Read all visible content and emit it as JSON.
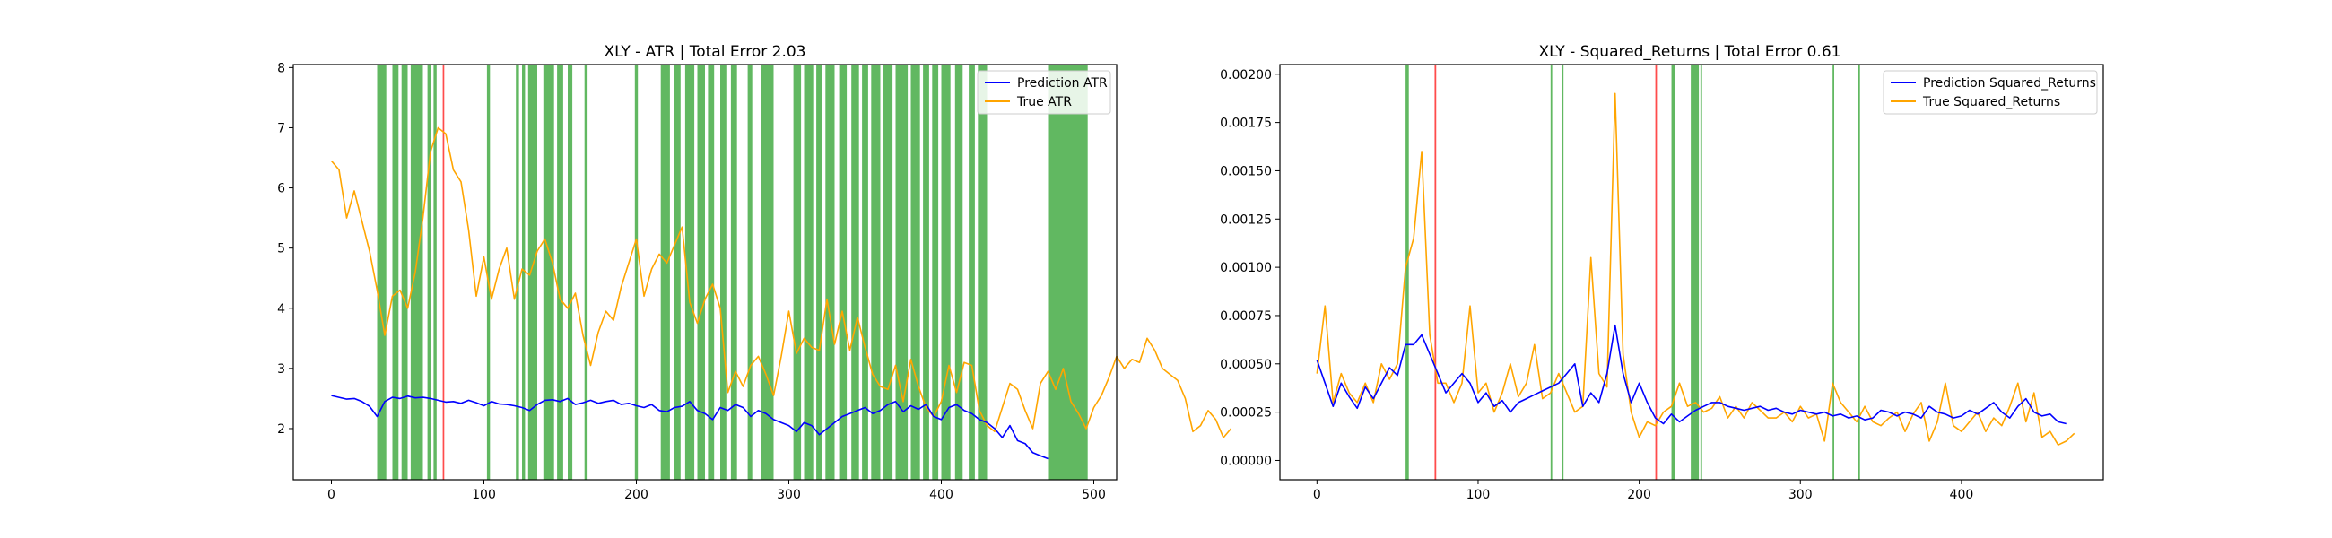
{
  "chart_data": [
    {
      "type": "line",
      "title": "XLY - ATR | Total Error 2.03",
      "xlabel": "",
      "ylabel": "",
      "xlim": [
        -25,
        515
      ],
      "ylim": [
        1.15,
        8.05
      ],
      "xticks": [
        0,
        100,
        200,
        300,
        400,
        500
      ],
      "yticks": [
        2,
        3,
        4,
        5,
        6,
        7,
        8
      ],
      "grid": false,
      "legend_position": "upper-right",
      "series": [
        {
          "name": "Prediction ATR",
          "color": "#0000ff",
          "x_start": 0,
          "x_step": 5,
          "values": [
            2.55,
            2.52,
            2.49,
            2.5,
            2.45,
            2.37,
            2.2,
            2.45,
            2.52,
            2.5,
            2.54,
            2.51,
            2.52,
            2.5,
            2.47,
            2.44,
            2.45,
            2.42,
            2.47,
            2.43,
            2.38,
            2.45,
            2.41,
            2.4,
            2.38,
            2.35,
            2.3,
            2.4,
            2.47,
            2.48,
            2.45,
            2.5,
            2.4,
            2.43,
            2.47,
            2.42,
            2.45,
            2.47,
            2.4,
            2.42,
            2.38,
            2.35,
            2.4,
            2.3,
            2.28,
            2.35,
            2.37,
            2.45,
            2.3,
            2.25,
            2.15,
            2.35,
            2.3,
            2.4,
            2.35,
            2.2,
            2.3,
            2.25,
            2.15,
            2.1,
            2.05,
            1.95,
            2.1,
            2.05,
            1.9,
            2.0,
            2.1,
            2.2,
            2.25,
            2.3,
            2.35,
            2.25,
            2.3,
            2.4,
            2.45,
            2.28,
            2.38,
            2.32,
            2.4,
            2.2,
            2.15,
            2.35,
            2.4,
            2.3,
            2.25,
            2.15,
            2.1,
            2.0,
            1.85,
            2.05,
            1.8,
            1.75,
            1.6,
            1.55,
            1.5
          ]
        },
        {
          "name": "True ATR",
          "color": "#ffa500",
          "x_start": 0,
          "x_step": 5,
          "values": [
            6.45,
            6.3,
            5.5,
            5.95,
            5.45,
            4.95,
            4.3,
            3.55,
            4.2,
            4.3,
            4.0,
            4.6,
            5.5,
            6.6,
            7.0,
            6.9,
            6.3,
            6.1,
            5.3,
            4.2,
            4.85,
            4.15,
            4.65,
            5.0,
            4.15,
            4.65,
            4.55,
            4.95,
            5.15,
            4.75,
            4.15,
            4.0,
            4.25,
            3.55,
            3.05,
            3.6,
            3.95,
            3.8,
            4.35,
            4.75,
            5.15,
            4.2,
            4.65,
            4.9,
            4.75,
            5.05,
            5.35,
            4.1,
            3.75,
            4.15,
            4.4,
            4.0,
            2.6,
            2.95,
            2.7,
            3.05,
            3.2,
            2.9,
            2.55,
            3.2,
            3.95,
            3.25,
            3.5,
            3.35,
            3.3,
            4.15,
            3.4,
            3.95,
            3.3,
            3.85,
            3.35,
            2.9,
            2.7,
            2.65,
            3.05,
            2.45,
            3.15,
            2.7,
            2.35,
            2.2,
            2.45,
            3.05,
            2.6,
            3.1,
            3.05,
            2.3,
            2.05,
            1.95,
            2.35,
            2.75,
            2.65,
            2.3,
            2.0,
            2.75,
            2.95,
            2.65,
            3.0,
            2.45,
            2.25,
            2.0,
            2.35,
            2.55,
            2.85,
            3.2,
            3.0,
            3.15,
            3.1,
            3.5,
            3.3,
            3.0,
            2.9,
            2.8,
            2.5,
            1.95,
            2.05,
            2.3,
            2.15,
            1.85,
            2.0
          ]
        }
      ],
      "bands": {
        "green": [
          [
            30,
            36
          ],
          [
            40,
            44
          ],
          [
            46,
            50
          ],
          [
            52,
            60
          ],
          [
            63,
            65
          ],
          [
            67,
            69
          ],
          [
            102,
            104
          ],
          [
            121,
            123
          ],
          [
            125,
            127
          ],
          [
            129,
            135
          ],
          [
            139,
            146
          ],
          [
            148,
            152
          ],
          [
            155,
            158
          ],
          [
            166,
            168
          ],
          [
            199,
            201
          ],
          [
            216,
            222
          ],
          [
            225,
            229
          ],
          [
            232,
            238
          ],
          [
            240,
            245
          ],
          [
            247,
            251
          ],
          [
            255,
            259
          ],
          [
            262,
            266
          ],
          [
            273,
            276
          ],
          [
            282,
            290
          ],
          [
            303,
            308
          ],
          [
            310,
            316
          ],
          [
            318,
            322
          ],
          [
            324,
            330
          ],
          [
            333,
            338
          ],
          [
            341,
            346
          ],
          [
            348,
            352
          ],
          [
            354,
            360
          ],
          [
            362,
            368
          ],
          [
            370,
            378
          ],
          [
            380,
            386
          ],
          [
            388,
            392
          ],
          [
            394,
            398
          ],
          [
            400,
            406
          ],
          [
            409,
            414
          ],
          [
            418,
            422
          ],
          [
            424,
            430
          ],
          [
            470,
            496
          ]
        ],
        "red": [
          [
            73,
            74
          ]
        ]
      }
    },
    {
      "type": "line",
      "title": "XLY - Squared_Returns | Total Error 0.61",
      "xlabel": "",
      "ylabel": "",
      "xlim": [
        -23,
        488
      ],
      "ylim": [
        -0.0001,
        0.00205
      ],
      "xticks": [
        0,
        100,
        200,
        300,
        400
      ],
      "yticks": [
        0.0,
        0.00025,
        0.0005,
        0.00075,
        0.001,
        0.00125,
        0.0015,
        0.00175,
        0.002
      ],
      "grid": false,
      "legend_position": "upper-right",
      "series": [
        {
          "name": "Prediction Squared_Returns",
          "color": "#0000ff",
          "x_start": 0,
          "x_step": 5,
          "values": [
            0.00052,
            0.0004,
            0.00028,
            0.0004,
            0.00033,
            0.00027,
            0.00038,
            0.00032,
            0.0004,
            0.00048,
            0.00044,
            0.0006,
            0.0006,
            0.00065,
            0.00055,
            0.00045,
            0.00035,
            0.0004,
            0.00045,
            0.0004,
            0.0003,
            0.00035,
            0.00028,
            0.00031,
            0.00025,
            0.0003,
            0.00032,
            0.00034,
            0.00036,
            0.00038,
            0.0004,
            0.00045,
            0.0005,
            0.00028,
            0.00035,
            0.0003,
            0.00045,
            0.0007,
            0.00045,
            0.0003,
            0.0004,
            0.0003,
            0.00022,
            0.00019,
            0.00024,
            0.0002,
            0.00023,
            0.00026,
            0.00028,
            0.0003,
            0.0003,
            0.00028,
            0.00027,
            0.00026,
            0.00027,
            0.00028,
            0.00026,
            0.00027,
            0.00025,
            0.00024,
            0.00026,
            0.00025,
            0.00024,
            0.00025,
            0.00023,
            0.00024,
            0.00022,
            0.00023,
            0.00021,
            0.00022,
            0.00026,
            0.00025,
            0.00023,
            0.00025,
            0.00024,
            0.00022,
            0.00028,
            0.00025,
            0.00024,
            0.00022,
            0.00023,
            0.00026,
            0.00024,
            0.00027,
            0.0003,
            0.00025,
            0.00022,
            0.00028,
            0.00032,
            0.00025,
            0.00023,
            0.00024,
            0.0002,
            0.00019
          ]
        },
        {
          "name": "True Squared_Returns",
          "color": "#ffa500",
          "x_start": 0,
          "x_step": 5,
          "values": [
            0.00045,
            0.0008,
            0.0003,
            0.00045,
            0.00035,
            0.0003,
            0.0004,
            0.0003,
            0.0005,
            0.00042,
            0.0005,
            0.001,
            0.00115,
            0.0016,
            0.00065,
            0.0004,
            0.0004,
            0.0003,
            0.0004,
            0.0008,
            0.00035,
            0.0004,
            0.00025,
            0.00035,
            0.0005,
            0.00033,
            0.0004,
            0.0006,
            0.00032,
            0.00035,
            0.00045,
            0.00035,
            0.00025,
            0.00028,
            0.00105,
            0.00045,
            0.00038,
            0.0019,
            0.00055,
            0.00025,
            0.00012,
            0.0002,
            0.00018,
            0.00025,
            0.00028,
            0.0004,
            0.00028,
            0.0003,
            0.00025,
            0.00027,
            0.00033,
            0.00022,
            0.00028,
            0.00022,
            0.0003,
            0.00026,
            0.00022,
            0.00022,
            0.00025,
            0.0002,
            0.00028,
            0.00022,
            0.00024,
            0.0001,
            0.0004,
            0.0003,
            0.00025,
            0.0002,
            0.00028,
            0.0002,
            0.00018,
            0.00022,
            0.00025,
            0.00015,
            0.00024,
            0.0003,
            0.0001,
            0.0002,
            0.0004,
            0.00018,
            0.00015,
            0.0002,
            0.00025,
            0.00015,
            0.00022,
            0.00018,
            0.00028,
            0.0004,
            0.0002,
            0.00035,
            0.00012,
            0.00015,
            8e-05,
            0.0001,
            0.00014
          ]
        }
      ],
      "bands": {
        "green": [
          [
            55,
            57
          ],
          [
            145,
            146
          ],
          [
            152,
            153
          ],
          [
            220,
            222
          ],
          [
            232,
            237
          ],
          [
            238,
            239
          ],
          [
            320,
            321
          ],
          [
            336,
            337
          ]
        ],
        "red": [
          [
            73,
            74
          ],
          [
            210,
            211
          ]
        ]
      }
    }
  ]
}
